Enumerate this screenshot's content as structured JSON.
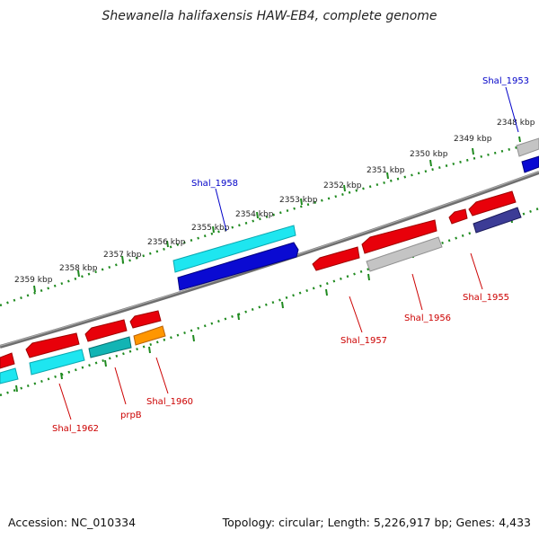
{
  "title": "Shewanella halifaxensis HAW-EB4, complete genome",
  "footer": {
    "accession": "Accession: NC_010334",
    "summary": "Topology: circular; Length: 5,226,917 bp; Genes: 4,433"
  },
  "colors": {
    "backbone": "#7f7f7f",
    "tick": "#1f8a1f",
    "forward_label": "#0000c8",
    "reverse_label": "#cc0000",
    "red": "#e8000a",
    "cyan": "#1ee6f0",
    "blue": "#0a0ad2",
    "gray": "#c4c4c4",
    "teal": "#12b4b4",
    "orange": "#ff9600",
    "navy": "#3c3c96"
  },
  "ticks": [
    {
      "label": "2348 kbp"
    },
    {
      "label": "2349 kbp"
    },
    {
      "label": "2350 kbp"
    },
    {
      "label": "2351 kbp"
    },
    {
      "label": "2352 kbp"
    },
    {
      "label": "2353 kbp"
    },
    {
      "label": "2354 kbp"
    },
    {
      "label": "2355 kbp"
    },
    {
      "label": "2356 kbp"
    },
    {
      "label": "2357 kbp"
    },
    {
      "label": "2358 kbp"
    },
    {
      "label": "2359 kbp"
    }
  ],
  "gene_labels": {
    "shal_1953": "Shal_1953",
    "shal_1958": "Shal_1958",
    "shal_1955": "Shal_1955",
    "shal_1956": "Shal_1956",
    "shal_1957": "Shal_1957",
    "shal_1960": "Shal_1960",
    "prpb": "prpB",
    "shal_1962": "Shal_1962"
  }
}
